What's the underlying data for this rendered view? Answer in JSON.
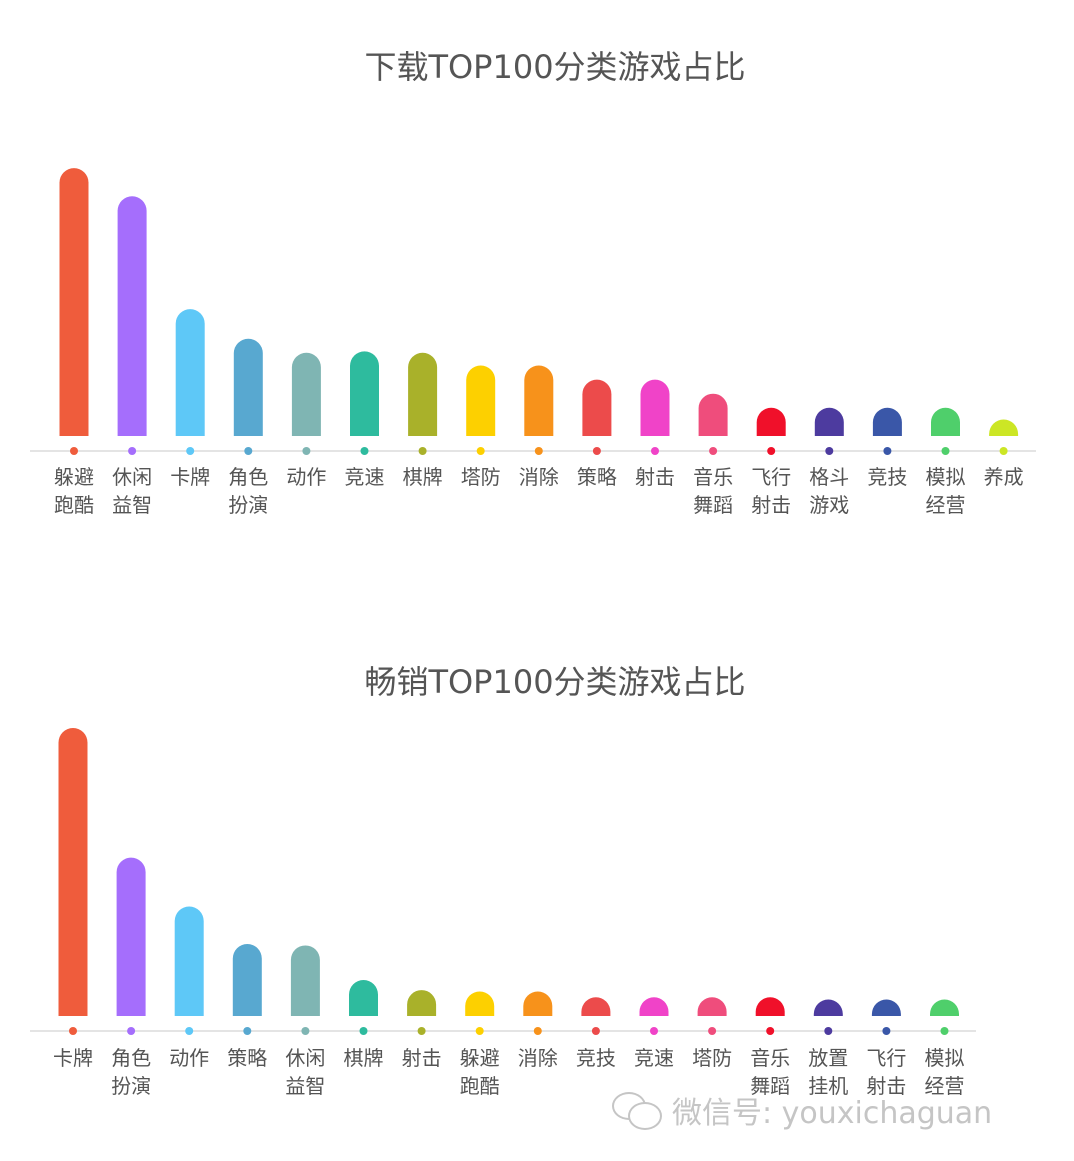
{
  "chart_data": [
    {
      "type": "bar",
      "title": "下载TOP100分类游戏占比",
      "categories": [
        "躲避\n跑酷",
        "休闲\n益智",
        "卡牌",
        "角色\n扮演",
        "动作",
        "竞速",
        "棋牌",
        "塔防",
        "消除",
        "策略",
        "射击",
        "音乐\n舞蹈",
        "飞行\n射击",
        "格斗\n游戏",
        "竞技",
        "模拟\n经营",
        "养成"
      ],
      "values": [
        19,
        17,
        9,
        6.9,
        5.9,
        6,
        5.9,
        5,
        5,
        4,
        4,
        3,
        2,
        2,
        2,
        2,
        1
      ],
      "colors": [
        "#ef5c3c",
        "#a56efc",
        "#5ec8f7",
        "#58a8d0",
        "#7fb5b3",
        "#2ebb9e",
        "#a9b12a",
        "#fdd000",
        "#f7921b",
        "#ec4b4b",
        "#f043c8",
        "#ef4d7c",
        "#f0102a",
        "#4d3b9f",
        "#3a57a8",
        "#4fcf6b",
        "#cce625"
      ],
      "ylim": [
        0,
        20
      ]
    },
    {
      "type": "bar",
      "title": "畅销TOP100分类游戏占比",
      "categories": [
        "卡牌",
        "角色\n扮演",
        "动作",
        "策略",
        "休闲\n益智",
        "棋牌",
        "射击",
        "躲避\n跑酷",
        "消除",
        "竞技",
        "竞速",
        "塔防",
        "音乐\n舞蹈",
        "放置\n挂机",
        "飞行\n射击",
        "模拟\n经营"
      ],
      "values": [
        20,
        11,
        7.6,
        5,
        4.9,
        2.5,
        1.8,
        1.7,
        1.7,
        1.3,
        1.3,
        1.3,
        1.3,
        0.6,
        0.6,
        0.5
      ],
      "colors": [
        "#ef5c3c",
        "#a56efc",
        "#5ec8f7",
        "#58a8d0",
        "#7fb5b3",
        "#2ebb9e",
        "#a9b12a",
        "#fdd000",
        "#f7921b",
        "#ec4b4b",
        "#f043c8",
        "#ef4d7c",
        "#f0102a",
        "#4d3b9f",
        "#3a57a8",
        "#4fcf6b"
      ],
      "ylim": [
        0,
        20
      ]
    }
  ],
  "watermark": {
    "icon": "wechat-icon",
    "text": "微信号: youxichaguan"
  }
}
